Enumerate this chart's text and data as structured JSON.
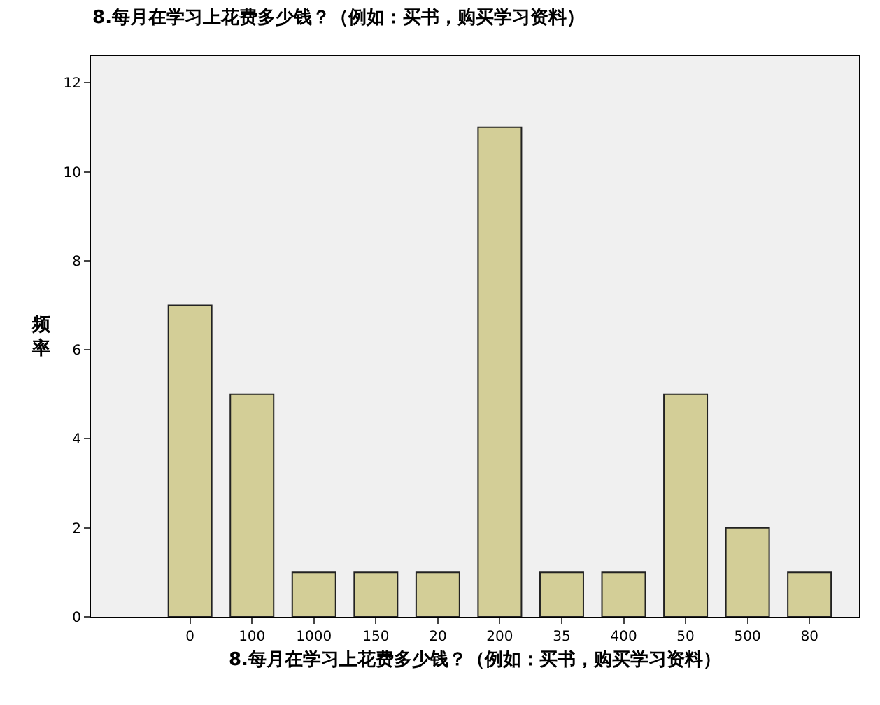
{
  "chart_data": {
    "type": "bar",
    "title": "8.每月在学习上花费多少钱？（例如：买书，购买学习资料）",
    "xlabel": "8.每月在学习上花费多少钱？（例如：买书，购买学习资料）",
    "ylabel": "频率",
    "categories": [
      "0",
      "100",
      "1000",
      "150",
      "20",
      "200",
      "35",
      "400",
      "50",
      "500",
      "80"
    ],
    "values": [
      7,
      5,
      1,
      1,
      1,
      11,
      1,
      1,
      5,
      2,
      1
    ],
    "color": "#d3ce97",
    "ylim": [
      0,
      12.6
    ],
    "yticks": [
      0,
      2,
      4,
      6,
      8,
      10,
      12
    ],
    "grid": false
  }
}
